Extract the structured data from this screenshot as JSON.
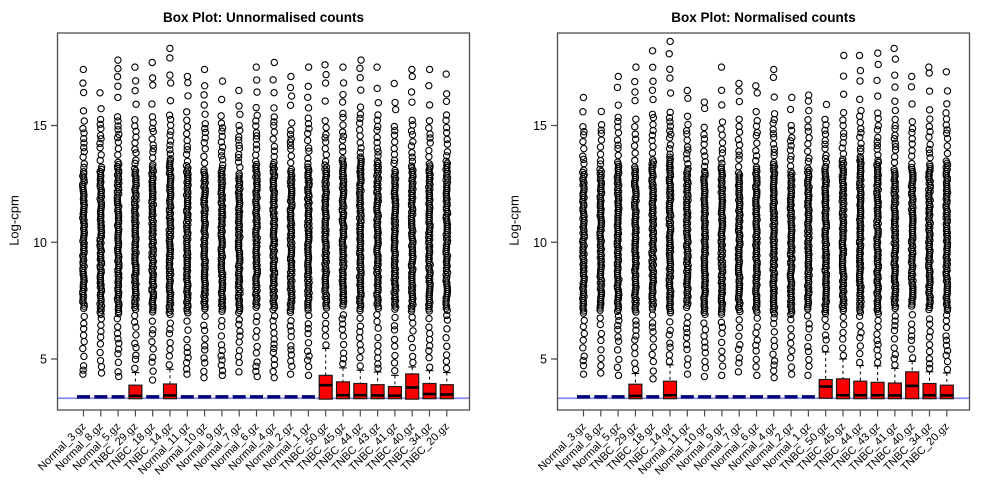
{
  "page": {
    "background": "#ffffff"
  },
  "chart_data": [
    {
      "type": "boxplot",
      "title": "Box Plot: Unnormalised counts",
      "ylabel": "Log-cpm",
      "yticks": [
        5,
        10,
        15
      ],
      "ylim": [
        2.8,
        19.0
      ],
      "grid": "off",
      "reference_line_value": 3.32,
      "colors": {
        "box_fill": "#fa0000",
        "box_border": "#1a1a1a",
        "flat_box": "#000078",
        "reference_line": "#8c8cf0",
        "axis": "#4d4d4d",
        "outlier": "#000000"
      },
      "categories": [
        "Normal_3.gz",
        "Normal_8.gz",
        "Normal_5.gz",
        "TNBC_29.gz",
        "TNBC_18.gz",
        "TNBC_14.gz",
        "Normal_11.gz",
        "Normal_10.gz",
        "Normal_9.gz",
        "Normal_7.gz",
        "Normal_6.gz",
        "Normal_4.gz",
        "Normal_2.gz",
        "Normal_1.gz",
        "TNBC_50.gz",
        "TNBC_45.gz",
        "TNBC_44.gz",
        "TNBC_43.gz",
        "TNBC_41.gz",
        "TNBC_40.gz",
        "TNBC_34.gz",
        "TNBC_20.gz"
      ],
      "stats": {
        "whisker_low": [
          3.3,
          3.3,
          3.3,
          3.3,
          3.3,
          3.3,
          3.3,
          3.3,
          3.3,
          3.3,
          3.3,
          3.3,
          3.3,
          3.3,
          3.28,
          3.3,
          3.3,
          3.3,
          3.3,
          3.28,
          3.3,
          3.3
        ],
        "q1": [
          3.33,
          3.33,
          3.33,
          3.3,
          3.33,
          3.3,
          3.33,
          3.33,
          3.33,
          3.33,
          3.33,
          3.33,
          3.33,
          3.33,
          3.28,
          3.3,
          3.3,
          3.3,
          3.3,
          3.28,
          3.3,
          3.3
        ],
        "median": [
          3.38,
          3.38,
          3.38,
          3.42,
          3.38,
          3.44,
          3.38,
          3.38,
          3.38,
          3.38,
          3.38,
          3.38,
          3.38,
          3.38,
          3.88,
          3.45,
          3.45,
          3.44,
          3.43,
          3.78,
          3.5,
          3.48
        ],
        "q3": [
          3.45,
          3.45,
          3.45,
          3.88,
          3.45,
          3.93,
          3.45,
          3.45,
          3.45,
          3.45,
          3.45,
          3.45,
          3.45,
          3.45,
          4.3,
          4.02,
          3.95,
          3.9,
          3.82,
          4.36,
          3.95,
          3.9
        ],
        "whisker_high": [
          3.5,
          3.5,
          3.5,
          4.42,
          3.5,
          4.56,
          3.5,
          3.5,
          3.5,
          3.5,
          3.5,
          3.5,
          3.5,
          3.5,
          5.45,
          4.62,
          4.52,
          4.44,
          4.3,
          4.66,
          4.5,
          4.42
        ],
        "outlier_min": [
          4.35,
          4.4,
          4.25,
          4.6,
          4.1,
          4.75,
          4.35,
          4.2,
          4.3,
          4.45,
          4.25,
          4.2,
          4.35,
          4.3,
          5.6,
          4.8,
          4.7,
          4.6,
          4.5,
          4.85,
          4.65,
          4.6
        ],
        "dense_top": [
          13.0,
          13.2,
          13.4,
          13.1,
          13.3,
          13.5,
          13.2,
          13.0,
          13.1,
          12.9,
          13.3,
          13.4,
          13.1,
          13.2,
          13.3,
          13.5,
          13.6,
          13.4,
          13.0,
          13.2,
          13.3,
          13.4
        ],
        "outlier_max": [
          17.4,
          16.4,
          17.8,
          17.5,
          17.7,
          18.3,
          17.1,
          17.4,
          16.9,
          16.5,
          17.5,
          17.7,
          17.1,
          17.5,
          17.6,
          17.5,
          17.8,
          17.5,
          16.8,
          17.4,
          17.4,
          17.2
        ]
      }
    },
    {
      "type": "boxplot",
      "title": "Box Plot: Normalised counts",
      "ylabel": "Log-cpm",
      "yticks": [
        5,
        10,
        15
      ],
      "ylim": [
        2.8,
        19.0
      ],
      "grid": "off",
      "reference_line_value": 3.32,
      "colors": {
        "box_fill": "#fa0000",
        "box_border": "#1a1a1a",
        "flat_box": "#000078",
        "reference_line": "#8c8cf0",
        "axis": "#4d4d4d",
        "outlier": "#000000"
      },
      "categories": [
        "Normal_3.gz",
        "Normal_8.gz",
        "Normal_5.gz",
        "TNBC_29.gz",
        "TNBC_18.gz",
        "TNBC_14.gz",
        "Normal_11.gz",
        "Normal_10.gz",
        "Normal_9.gz",
        "Normal_7.gz",
        "Normal_6.gz",
        "Normal_4.gz",
        "Normal_2.gz",
        "Normal_1.gz",
        "TNBC_50.gz",
        "TNBC_45.gz",
        "TNBC_44.gz",
        "TNBC_43.gz",
        "TNBC_41.gz",
        "TNBC_40.gz",
        "TNBC_34.gz",
        "TNBC_20.gz"
      ],
      "stats": {
        "whisker_low": [
          3.3,
          3.3,
          3.3,
          3.3,
          3.3,
          3.3,
          3.3,
          3.3,
          3.3,
          3.3,
          3.3,
          3.3,
          3.3,
          3.3,
          3.3,
          3.3,
          3.3,
          3.3,
          3.3,
          3.3,
          3.3,
          3.3
        ],
        "q1": [
          3.33,
          3.33,
          3.33,
          3.3,
          3.33,
          3.3,
          3.33,
          3.33,
          3.33,
          3.33,
          3.33,
          3.33,
          3.33,
          3.33,
          3.32,
          3.3,
          3.3,
          3.3,
          3.3,
          3.3,
          3.3,
          3.3
        ],
        "median": [
          3.38,
          3.38,
          3.38,
          3.42,
          3.38,
          3.45,
          3.38,
          3.38,
          3.38,
          3.38,
          3.38,
          3.38,
          3.38,
          3.38,
          3.82,
          3.45,
          3.45,
          3.45,
          3.44,
          3.85,
          3.45,
          3.44
        ],
        "q3": [
          3.45,
          3.45,
          3.45,
          3.92,
          3.45,
          4.05,
          3.45,
          3.45,
          3.45,
          3.45,
          3.45,
          3.45,
          3.45,
          3.45,
          4.12,
          4.15,
          4.05,
          4.0,
          3.97,
          4.45,
          3.95,
          3.88
        ],
        "whisker_high": [
          3.5,
          3.5,
          3.5,
          4.38,
          3.5,
          4.75,
          3.5,
          3.5,
          3.5,
          3.5,
          3.5,
          3.5,
          3.5,
          3.5,
          5.3,
          5.0,
          4.72,
          4.7,
          4.6,
          4.9,
          4.45,
          4.4
        ],
        "outlier_min": [
          4.35,
          4.4,
          4.3,
          4.55,
          4.15,
          4.9,
          4.35,
          4.25,
          4.3,
          4.45,
          4.3,
          4.2,
          4.35,
          4.3,
          5.45,
          5.15,
          4.85,
          4.85,
          4.75,
          5.05,
          4.6,
          4.55
        ],
        "dense_top": [
          13.0,
          13.1,
          13.4,
          13.2,
          13.5,
          13.6,
          13.1,
          13.0,
          13.2,
          12.9,
          13.2,
          13.4,
          13.0,
          13.1,
          13.2,
          13.5,
          13.6,
          13.5,
          13.1,
          13.2,
          13.3,
          13.4
        ],
        "outlier_max": [
          16.2,
          15.6,
          17.1,
          17.5,
          18.2,
          18.6,
          16.5,
          16.0,
          17.5,
          16.8,
          16.7,
          17.4,
          16.2,
          16.3,
          15.9,
          18.0,
          18.0,
          18.1,
          18.3,
          17.1,
          17.5,
          17.3
        ]
      }
    }
  ]
}
